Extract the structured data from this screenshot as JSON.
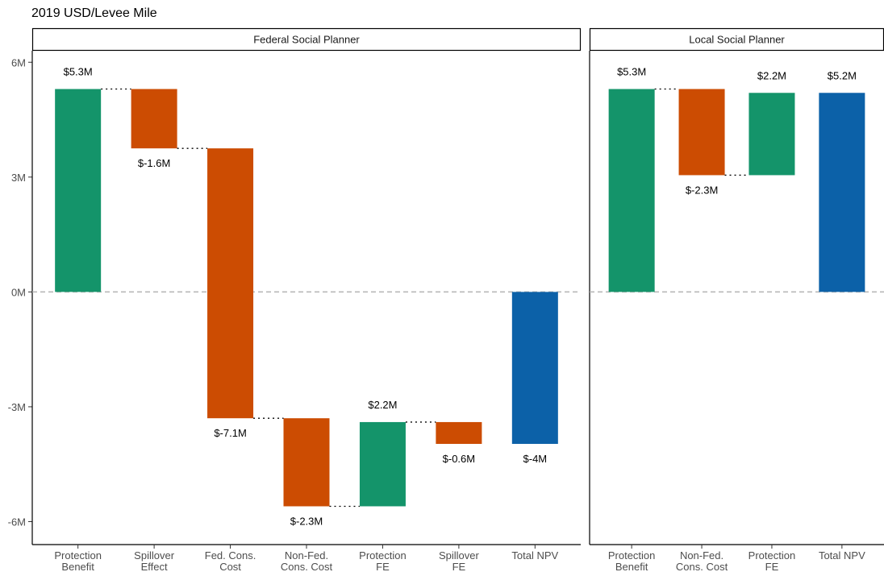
{
  "chart_data": {
    "type": "bar",
    "title": "2019 USD/Levee Mile",
    "ylim": [
      -6.6,
      6.3
    ],
    "yticks": [
      {
        "value": 6,
        "label": "6M"
      },
      {
        "value": 3,
        "label": "3M"
      },
      {
        "value": 0,
        "label": "0M"
      },
      {
        "value": -3,
        "label": "-3M"
      },
      {
        "value": -6,
        "label": "-6M"
      }
    ],
    "reference_line": {
      "value": 0,
      "style": "dashed",
      "color": "#b3b3b3"
    },
    "colors": {
      "benefit": "#14946A",
      "cost": "#CC4C02",
      "total": "#0C61A8"
    },
    "panels": [
      {
        "name": "Federal Social Planner",
        "bars": [
          {
            "category": "Protection\nBenefit",
            "start": 0,
            "end": 5.3,
            "label": "$5.3M",
            "kind": "benefit"
          },
          {
            "category": "Spillover\nEffect",
            "start": 5.3,
            "end": 3.75,
            "label": "$-1.6M",
            "kind": "cost"
          },
          {
            "category": "Fed. Cons.\nCost",
            "start": 3.75,
            "end": -3.3,
            "label": "$-7.1M",
            "kind": "cost"
          },
          {
            "category": "Non-Fed.\nCons. Cost",
            "start": -3.3,
            "end": -5.6,
            "label": "$-2.3M",
            "kind": "cost"
          },
          {
            "category": "Protection\nFE",
            "start": -5.6,
            "end": -3.4,
            "label": "$2.2M",
            "kind": "benefit"
          },
          {
            "category": "Spillover\nFE",
            "start": -3.4,
            "end": -3.97,
            "label": "$-0.6M",
            "kind": "cost"
          },
          {
            "category": "Total NPV",
            "start": 0,
            "end": -3.97,
            "label": "$-4M",
            "kind": "total"
          }
        ]
      },
      {
        "name": "Local Social Planner",
        "bars": [
          {
            "category": "Protection\nBenefit",
            "start": 0,
            "end": 5.3,
            "label": "$5.3M",
            "kind": "benefit"
          },
          {
            "category": "Non-Fed.\nCons. Cost",
            "start": 5.3,
            "end": 3.05,
            "label": "$-2.3M",
            "kind": "cost"
          },
          {
            "category": "Protection\nFE",
            "start": 3.05,
            "end": 5.2,
            "label": "$2.2M",
            "kind": "benefit"
          },
          {
            "category": "Total NPV",
            "start": 0,
            "end": 5.2,
            "label": "$5.2M",
            "kind": "total"
          }
        ]
      }
    ]
  }
}
